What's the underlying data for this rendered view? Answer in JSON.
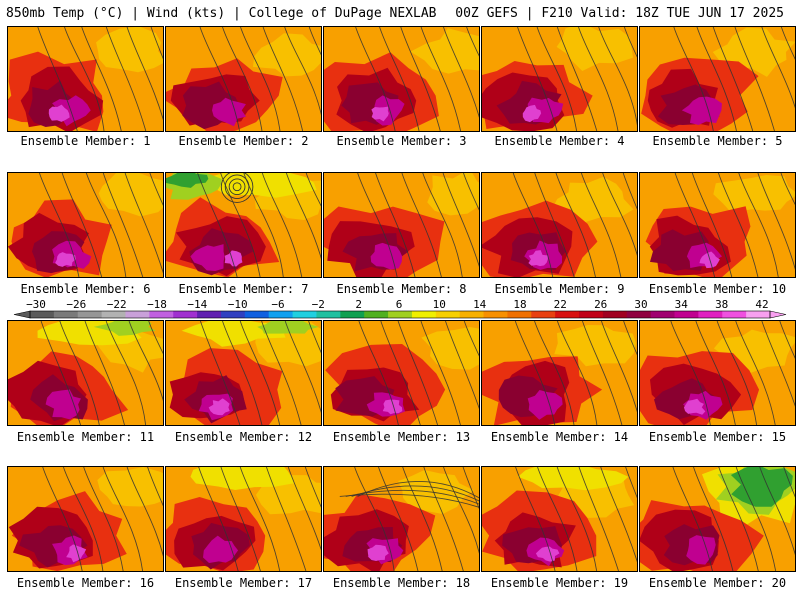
{
  "header": {
    "left": "850mb Temp (°C) | Wind (kts) | College of DuPage NEXLAB",
    "right": "00Z GEFS | F210 Valid: 18Z TUE JUN 17 2025"
  },
  "panel_label_prefix": "Ensemble Member: ",
  "members": [
    1,
    2,
    3,
    4,
    5,
    6,
    7,
    8,
    9,
    10,
    11,
    12,
    13,
    14,
    15,
    16,
    17,
    18,
    19,
    20
  ],
  "member_labels": [
    "Ensemble Member: 1",
    "Ensemble Member: 2",
    "Ensemble Member: 3",
    "Ensemble Member: 4",
    "Ensemble Member: 5",
    "Ensemble Member: 6",
    "Ensemble Member: 7",
    "Ensemble Member: 8",
    "Ensemble Member: 9",
    "Ensemble Member: 10",
    "Ensemble Member: 11",
    "Ensemble Member: 12",
    "Ensemble Member: 13",
    "Ensemble Member: 14",
    "Ensemble Member: 15",
    "Ensemble Member: 16",
    "Ensemble Member: 17",
    "Ensemble Member: 18",
    "Ensemble Member: 19",
    "Ensemble Member: 20"
  ],
  "colorbar": {
    "tick_labels": [
      "−30",
      "−26",
      "−22",
      "−18",
      "−14",
      "−10",
      "−6",
      "−2",
      "2",
      "6",
      "10",
      "14",
      "18",
      "22",
      "26",
      "30",
      "34",
      "38",
      "42"
    ],
    "colors": [
      "#5a5a5a",
      "#7a7a7a",
      "#969696",
      "#b2b2b2",
      "#c9a0d9",
      "#c060e0",
      "#a030d0",
      "#6020b0",
      "#3040c0",
      "#1060e0",
      "#10a0f0",
      "#20d0e0",
      "#20c0a0",
      "#10a050",
      "#50b020",
      "#a0d020",
      "#f0f000",
      "#f8d000",
      "#f8b000",
      "#f89000",
      "#f07000",
      "#e84010",
      "#d81010",
      "#c00018",
      "#a00020",
      "#900040",
      "#a00070",
      "#c00090",
      "#e020c0",
      "#f050e0",
      "#f8a0f0"
    ]
  },
  "map_colors": {
    "orange": "#f8a000",
    "orange_light": "#f8c000",
    "yellow": "#f0e000",
    "red": "#e83010",
    "dark_red": "#b00018",
    "maroon": "#8a0030",
    "magenta": "#c00090",
    "pink": "#e040d0",
    "green": "#30a030",
    "light_green": "#a0d020"
  }
}
